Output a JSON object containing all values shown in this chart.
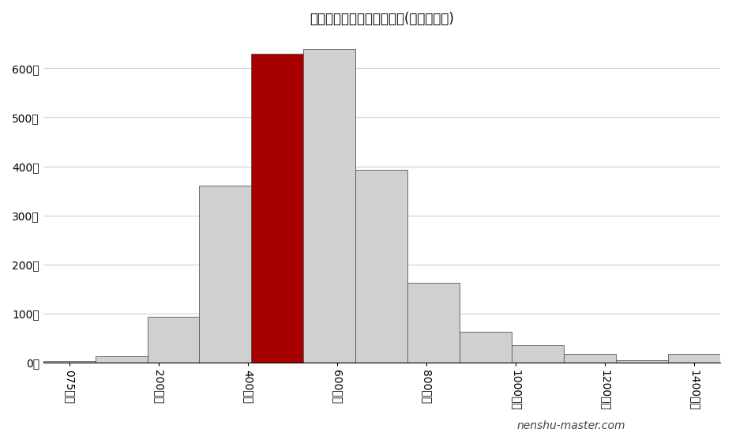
{
  "title": "東和銀行の年収ポジション(関東地方内)",
  "bar_labels": [
    "075万円",
    "200万円",
    "400万円",
    "600万円",
    "800万円",
    "1000万円",
    "1200万円",
    "1400万円"
  ],
  "bar_positions": [
    0,
    1,
    2,
    3,
    4,
    5,
    6,
    7,
    8,
    9,
    10,
    11,
    12
  ],
  "bar_values": [
    3,
    12,
    93,
    360,
    630,
    640,
    393,
    163,
    62,
    35,
    18,
    5,
    18
  ],
  "bar_colors": [
    "#d0d0d0",
    "#d0d0d0",
    "#d0d0d0",
    "#d0d0d0",
    "#a80000",
    "#d0d0d0",
    "#d0d0d0",
    "#d0d0d0",
    "#d0d0d0",
    "#d0d0d0",
    "#d0d0d0",
    "#d0d0d0",
    "#d0d0d0"
  ],
  "xtick_positions": [
    0,
    1.5,
    3,
    4.5,
    6,
    7.5,
    9,
    10.5,
    12
  ],
  "xtick_labels": [
    "075万円",
    "200万円",
    "400万円",
    "600万円",
    "800万円",
    "1000万円",
    "1200万円",
    "1400万円",
    ""
  ],
  "ytick_values": [
    0,
    100,
    200,
    300,
    400,
    500,
    600
  ],
  "ytick_labels": [
    "0社",
    "100社",
    "200社",
    "300社",
    "400社",
    "500社",
    "600社"
  ],
  "ylim": [
    0,
    670
  ],
  "watermark": "nenshu-master.com",
  "background_color": "#ffffff",
  "bar_edge_color": "#555555",
  "grid_color": "#d0d0d0",
  "title_fontsize": 12
}
